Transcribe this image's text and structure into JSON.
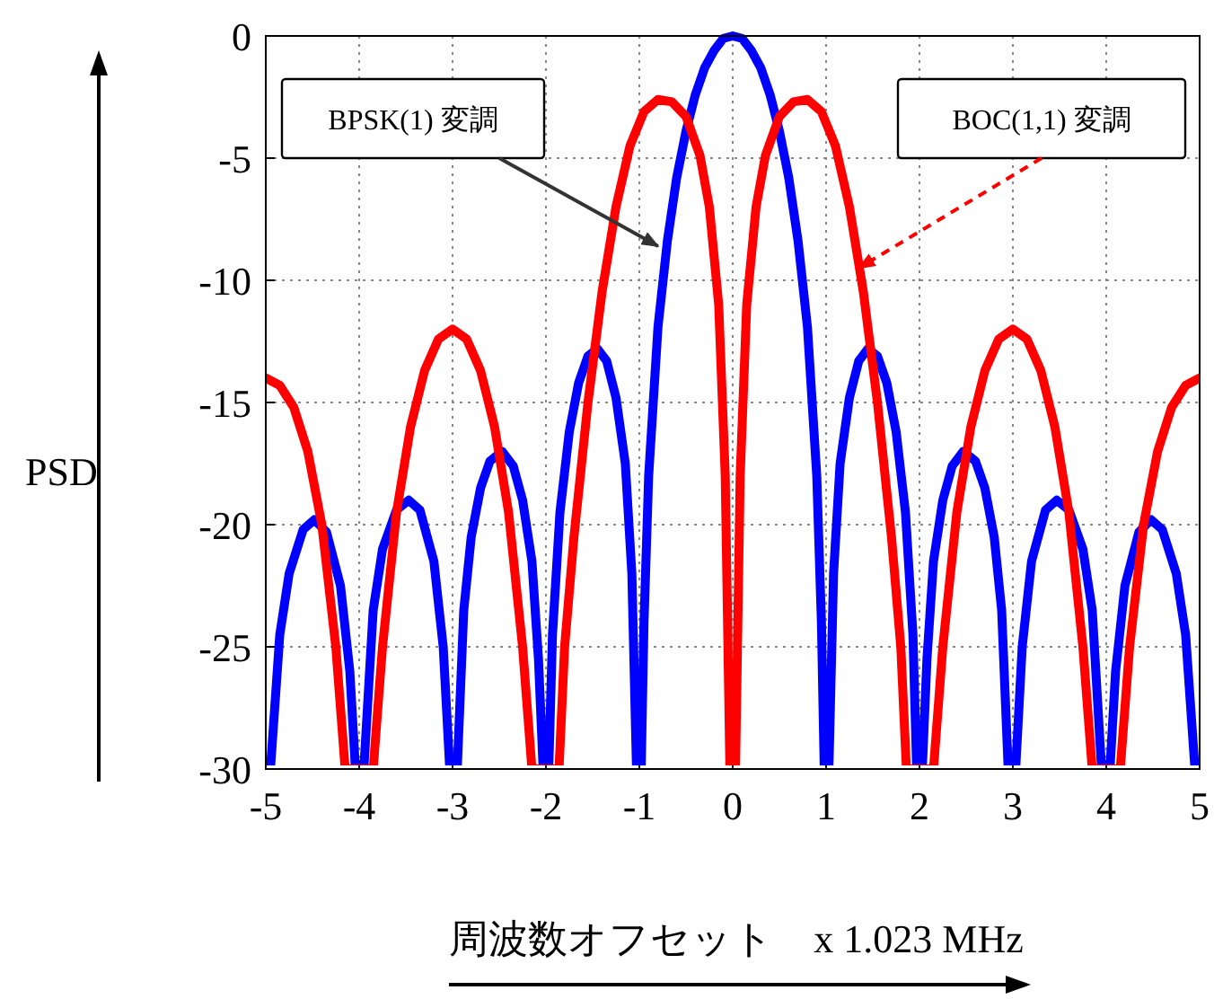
{
  "chart_data": {
    "type": "line",
    "xlabel": "周波数オフセット　x 1.023 MHz",
    "ylabel": "PSD",
    "xlim": [
      -5,
      5
    ],
    "ylim": [
      -30,
      0
    ],
    "xticks": [
      -5,
      -4,
      -3,
      -2,
      -1,
      0,
      1,
      2,
      3,
      4,
      5
    ],
    "yticks": [
      0,
      -5,
      -10,
      -15,
      -20,
      -25,
      -30
    ],
    "grid": true,
    "annotations": [
      {
        "text": "BPSK(1) 変調",
        "x": -0.8,
        "y": -8.6
      },
      {
        "text": "BOC(1,1) 変調",
        "x": 1.35,
        "y": -9.5
      }
    ],
    "series": [
      {
        "color": "#0000ff",
        "x": [
          -4.95,
          -4.85,
          -4.75,
          -4.6,
          -4.48,
          -4.35,
          -4.2,
          -4.1,
          -4.04,
          -3.95,
          -3.85,
          -3.75,
          -3.6,
          -3.47,
          -3.35,
          -3.2,
          -3.1,
          -3.03,
          -2.95,
          -2.88,
          -2.8,
          -2.7,
          -2.6,
          -2.47,
          -2.35,
          -2.25,
          -2.15,
          -2.08,
          -2.03,
          -1.97,
          -1.93,
          -1.85,
          -1.75,
          -1.65,
          -1.55,
          -1.45,
          -1.35,
          -1.25,
          -1.15,
          -1.08,
          -1.03,
          -0.98,
          -0.95,
          -0.9,
          -0.8,
          -0.7,
          -0.6,
          -0.5,
          -0.4,
          -0.3,
          -0.2,
          -0.1,
          0,
          0.1,
          0.2,
          0.3,
          0.4,
          0.5,
          0.6,
          0.7,
          0.8,
          0.9,
          0.95,
          0.98,
          1.03,
          1.08,
          1.15,
          1.25,
          1.35,
          1.45,
          1.55,
          1.65,
          1.75,
          1.85,
          1.93,
          1.97,
          2.03,
          2.08,
          2.15,
          2.25,
          2.35,
          2.47,
          2.6,
          2.7,
          2.8,
          2.88,
          2.95,
          3.03,
          3.1,
          3.2,
          3.35,
          3.47,
          3.6,
          3.75,
          3.85,
          3.95,
          4.04,
          4.1,
          4.2,
          4.35,
          4.48,
          4.6,
          4.75,
          4.85,
          4.95
        ],
        "values": [
          -30,
          -24.5,
          -22,
          -20.2,
          -19.8,
          -20.3,
          -22.5,
          -26,
          -30,
          -30,
          -23.5,
          -21,
          -19.4,
          -19,
          -19.4,
          -21.5,
          -25,
          -30,
          -30,
          -23.5,
          -20.5,
          -18.5,
          -17.4,
          -17,
          -17.6,
          -19,
          -21.5,
          -25.5,
          -30,
          -30,
          -24.5,
          -19.5,
          -16.2,
          -14.2,
          -13.1,
          -12.8,
          -13.3,
          -14.8,
          -17.5,
          -22,
          -30,
          -30,
          -24,
          -18,
          -11.9,
          -8.4,
          -5.8,
          -3.9,
          -2.4,
          -1.3,
          -0.6,
          -0.1,
          0,
          -0.1,
          -0.6,
          -1.3,
          -2.4,
          -3.9,
          -5.8,
          -8.4,
          -11.9,
          -18,
          -24,
          -30,
          -30,
          -22,
          -17.5,
          -14.8,
          -13.3,
          -12.8,
          -13.1,
          -14.2,
          -16.2,
          -19.5,
          -24.5,
          -30,
          -30,
          -25.5,
          -21.5,
          -19,
          -17.6,
          -17,
          -17.4,
          -18.5,
          -20.5,
          -23.5,
          -30,
          -30,
          -25,
          -21.5,
          -19.4,
          -19,
          -19.4,
          -21,
          -23.5,
          -30,
          -30,
          -26,
          -22.5,
          -20.3,
          -19.8,
          -20.2,
          -22,
          -24.5,
          -30
        ]
      },
      {
        "color": "#ff0000",
        "x": [
          -5.0,
          -4.85,
          -4.7,
          -4.55,
          -4.4,
          -4.25,
          -4.15,
          -3.85,
          -3.75,
          -3.6,
          -3.45,
          -3.3,
          -3.15,
          -3.0,
          -2.85,
          -2.7,
          -2.55,
          -2.4,
          -2.25,
          -2.15,
          -1.86,
          -1.8,
          -1.7,
          -1.55,
          -1.4,
          -1.25,
          -1.1,
          -0.95,
          -0.8,
          -0.65,
          -0.5,
          -0.35,
          -0.25,
          -0.15,
          -0.08,
          -0.03,
          0.03,
          0.08,
          0.15,
          0.25,
          0.35,
          0.5,
          0.65,
          0.8,
          0.95,
          1.1,
          1.25,
          1.4,
          1.55,
          1.7,
          1.8,
          1.86,
          2.15,
          2.25,
          2.4,
          2.55,
          2.7,
          2.85,
          3.0,
          3.15,
          3.3,
          3.45,
          3.6,
          3.75,
          3.85,
          4.15,
          4.25,
          4.4,
          4.55,
          4.7,
          4.85,
          5.0
        ],
        "values": [
          -14,
          -14.3,
          -15.2,
          -17,
          -20,
          -25,
          -30,
          -30,
          -25,
          -19.5,
          -16,
          -13.7,
          -12.4,
          -12,
          -12.4,
          -13.7,
          -16,
          -19.5,
          -25,
          -30,
          -30,
          -25,
          -20.5,
          -15,
          -10.5,
          -7,
          -4.5,
          -3.1,
          -2.6,
          -2.7,
          -3.3,
          -4.9,
          -7,
          -11,
          -18,
          -30,
          -30,
          -18,
          -11,
          -7,
          -4.9,
          -3.3,
          -2.7,
          -2.6,
          -3.1,
          -4.5,
          -7,
          -10.5,
          -15,
          -20.5,
          -25,
          -30,
          -30,
          -25,
          -19.5,
          -16,
          -13.7,
          -12.4,
          -12,
          -12.4,
          -13.7,
          -16,
          -19.5,
          -25,
          -30,
          -30,
          -25,
          -20,
          -17,
          -15.2,
          -14.3,
          -14
        ]
      }
    ]
  }
}
